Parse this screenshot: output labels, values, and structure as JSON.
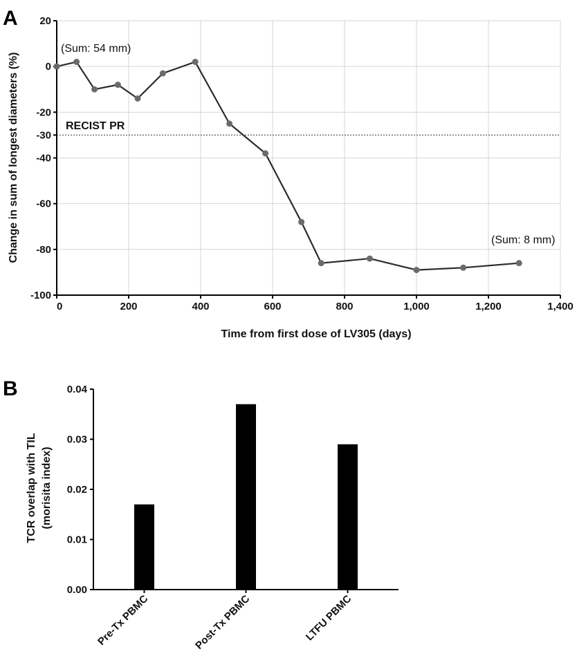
{
  "panels": {
    "a": "A",
    "b": "B"
  },
  "chart_data": [
    {
      "type": "line",
      "xlabel": "Time from first dose of LV305 (days)",
      "ylabel": "Change in sum of longest diameters (%)",
      "xlim": [
        0,
        1400
      ],
      "ylim": [
        -100,
        20
      ],
      "xticks": [
        0,
        200,
        400,
        600,
        800,
        1000,
        1200,
        1400
      ],
      "xtick_labels": [
        "0",
        "200",
        "400",
        "600",
        "800",
        "1,000",
        "1,200",
        "1,400"
      ],
      "yticks": [
        20,
        0,
        -20,
        -30,
        -40,
        -60,
        -80,
        -100
      ],
      "ytick_labels": [
        "20",
        "0",
        "-20",
        "-30",
        "-40",
        "-60",
        "-80",
        "-100"
      ],
      "grid": true,
      "series": [
        {
          "x": [
            0,
            55,
            105,
            170,
            225,
            295,
            385,
            480,
            580,
            680,
            735,
            870,
            1000,
            1130,
            1285
          ],
          "y": [
            0,
            2,
            -10,
            -8,
            -14,
            -3,
            2,
            -25,
            -38,
            -68,
            -86,
            -84,
            -89,
            -88,
            -86
          ],
          "color": "#2b2b2b",
          "marker_color": "#6b6b6b"
        }
      ],
      "reference_line": {
        "y": -30,
        "label": "RECIST PR",
        "style": "dotted"
      },
      "annotations": [
        {
          "text": "(Sum: 54 mm)"
        },
        {
          "text": "(Sum: 8 mm)"
        }
      ]
    },
    {
      "type": "bar",
      "ylabel_lines": [
        "TCR overlap with TIL",
        "(morisita index)"
      ],
      "categories": [
        "Pre-Tx PBMC",
        "Post-Tx PBMC",
        "LTFU PBMC"
      ],
      "values": [
        0.017,
        0.037,
        0.029
      ],
      "ylim": [
        0,
        0.04
      ],
      "yticks": [
        0,
        0.01,
        0.02,
        0.03,
        0.04
      ],
      "ytick_labels": [
        "0.00",
        "0.01",
        "0.02",
        "0.03",
        "0.04"
      ],
      "bar_color": "#000000",
      "grid": false
    }
  ]
}
